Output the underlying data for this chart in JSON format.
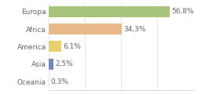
{
  "categories": [
    "Europa",
    "Africa",
    "America",
    "Asia",
    "Oceania"
  ],
  "values": [
    56.8,
    34.3,
    6.1,
    2.5,
    0.3
  ],
  "labels": [
    "56,8%",
    "34,3%",
    "6,1%",
    "2,5%",
    "0,3%"
  ],
  "bar_colors": [
    "#a8c47a",
    "#e8b888",
    "#e8d070",
    "#7088c0",
    "#e87070"
  ],
  "background_color": "#ffffff",
  "xlim": [
    0,
    68
  ],
  "bar_height": 0.62,
  "label_fontsize": 6.5,
  "tick_fontsize": 6.5
}
